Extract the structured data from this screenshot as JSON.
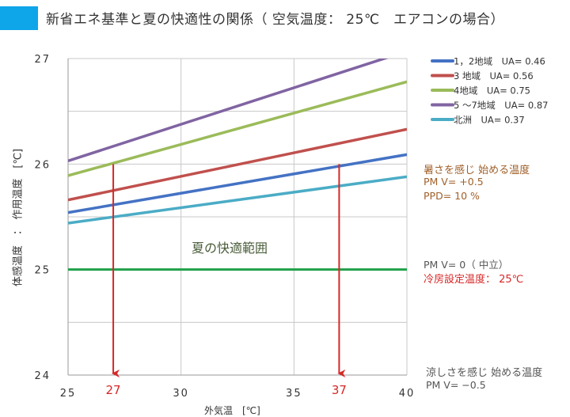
{
  "header": {
    "title": "新省エネ基準と夏の快適性の関係（ 空気温度： 25℃　エアコンの場合）"
  },
  "chart_data": {
    "type": "line",
    "title": "新省エネ基準と夏の快適性の関係（ 空気温度： 25℃　エアコンの場合）",
    "xlabel": "外気温　[℃]",
    "ylabel": "体感温度　：　作用温度　[℃]",
    "xlim": [
      25,
      40
    ],
    "ylim": [
      24,
      27
    ],
    "xticks": [
      25,
      30,
      35,
      40
    ],
    "yticks": [
      24,
      25,
      26,
      27
    ],
    "grid": true,
    "legend_position": "right",
    "series": [
      {
        "name": "1，2地域　UA= 0.46",
        "color": "#4472c4",
        "x": [
          25,
          40
        ],
        "y": [
          25.54,
          26.09
        ]
      },
      {
        "name": "3 地域　UA= 0.56",
        "color": "#c0504d",
        "x": [
          25,
          40
        ],
        "y": [
          25.66,
          26.33
        ]
      },
      {
        "name": "4地域　UA= 0.75",
        "color": "#9bbb59",
        "x": [
          25,
          40
        ],
        "y": [
          25.89,
          26.78
        ]
      },
      {
        "name": "5 ～7地域　UA= 0.87",
        "color": "#8064a2",
        "x": [
          25,
          40
        ],
        "y": [
          26.03,
          27.07
        ]
      },
      {
        "name": "北洲　UA= 0.37",
        "color": "#4bacc6",
        "x": [
          25,
          40
        ],
        "y": [
          25.44,
          25.88
        ]
      }
    ],
    "reference_line": {
      "y": 25,
      "color": "#1fa04a"
    },
    "arrows": [
      {
        "x": 27,
        "from_y": 26,
        "to_y": 24,
        "label": "27"
      },
      {
        "x": 37,
        "from_y": 26,
        "to_y": 24,
        "label": "37"
      }
    ],
    "region_label": "夏の快適範囲",
    "annotations": {
      "hot": {
        "title": "暑さを感じ 始める温度",
        "pmv": "PM V=  +0.5",
        "ppd": "PPD=  10 %"
      },
      "neutral": {
        "pmv": "PM V=  0（ 中立）",
        "setting": "冷房設定温度： 25℃"
      },
      "cool": {
        "title": "涼しさを感じ 始める温度",
        "pmv": "PM V=  −0.5"
      }
    }
  }
}
